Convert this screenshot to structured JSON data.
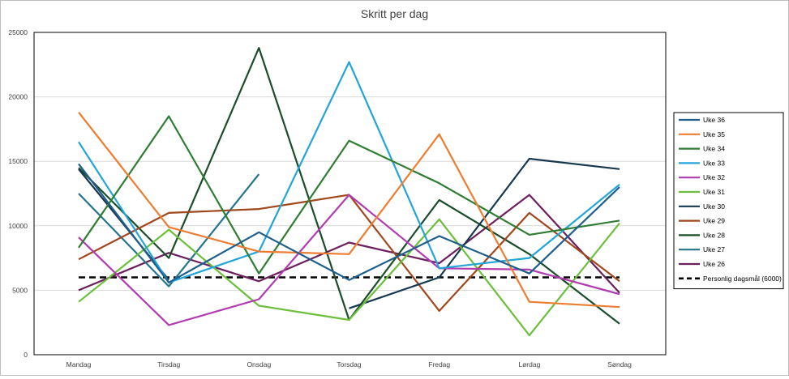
{
  "chart_data": {
    "type": "line",
    "title": "Skritt per dag",
    "xlabel": "",
    "ylabel": "",
    "ylim": [
      0,
      25000
    ],
    "yticks": [
      0,
      5000,
      10000,
      15000,
      20000,
      25000
    ],
    "ytick_labels": [
      "0",
      "5000",
      "10000",
      "15000",
      "20000",
      "25000"
    ],
    "grid": true,
    "legend_position": "right",
    "categories": [
      "Mandag",
      "Tirsdag",
      "Onsdag",
      "Torsdag",
      "Fredag",
      "Lørdag",
      "Søndag"
    ],
    "series": [
      {
        "name": "Uke 36",
        "color": "#1f5f8b",
        "dash": false,
        "values": [
          14800,
          5600,
          9500,
          5800,
          9200,
          6300,
          13000
        ]
      },
      {
        "name": "Uke 35",
        "color": "#ed7d31",
        "dash": false,
        "values": [
          18800,
          9900,
          8000,
          7800,
          17100,
          4100,
          3700
        ]
      },
      {
        "name": "Uke 34",
        "color": "#2e7d32",
        "dash": false,
        "values": [
          8300,
          18500,
          6300,
          16600,
          13300,
          9300,
          10400
        ]
      },
      {
        "name": "Uke 33",
        "color": "#22a5d8",
        "dash": false,
        "values": [
          16500,
          5600,
          8000,
          22700,
          6700,
          7500,
          13200
        ]
      },
      {
        "name": "Uke 32",
        "color": "#b03cb0",
        "dash": false,
        "values": [
          9100,
          2300,
          4300,
          12400,
          6700,
          6600,
          4700
        ]
      },
      {
        "name": "Uke 31",
        "color": "#6cbf3c",
        "dash": false,
        "values": [
          4100,
          9700,
          3800,
          2700,
          10500,
          1500,
          10200
        ]
      },
      {
        "name": "Uke 30",
        "color": "#16384f",
        "dash": false,
        "values": [
          14400,
          5800,
          null,
          3600,
          6000,
          15200,
          14400
        ]
      },
      {
        "name": "Uke 29",
        "color": "#a0471d",
        "dash": false,
        "values": [
          7400,
          11000,
          11300,
          12400,
          3400,
          11000,
          5700
        ]
      },
      {
        "name": "Uke 28",
        "color": "#1b4d2a",
        "dash": false,
        "values": [
          14500,
          7500,
          23800,
          2700,
          12000,
          7800,
          2400
        ]
      },
      {
        "name": "Uke 27",
        "color": "#24748c",
        "dash": false,
        "values": [
          12500,
          5300,
          14000,
          null,
          null,
          null,
          null
        ]
      },
      {
        "name": "Uke 26",
        "color": "#6b1f5c",
        "dash": false,
        "values": [
          5000,
          7900,
          5700,
          8700,
          7100,
          12400,
          4800
        ]
      },
      {
        "name": "Personlig dagsmål (6000)",
        "color": "#000000",
        "dash": true,
        "values": [
          6000,
          6000,
          6000,
          6000,
          6000,
          6000,
          6000
        ]
      }
    ]
  }
}
